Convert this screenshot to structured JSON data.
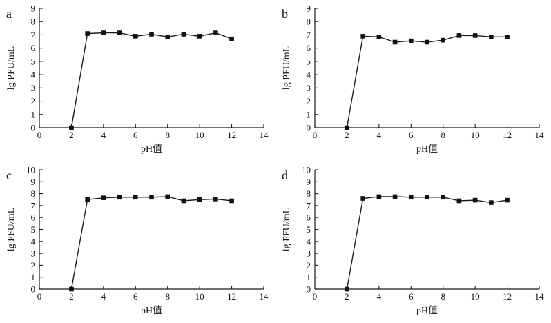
{
  "page": {
    "background": "#ffffff",
    "foreground": "#1a1a1a"
  },
  "chart_data": [
    {
      "type": "line",
      "panel_label": "a",
      "xlabel": "pH值",
      "ylabel": "lg PFU/mL",
      "xlim": [
        0,
        14
      ],
      "ylim": [
        0,
        9
      ],
      "xticks": [
        0,
        2,
        4,
        6,
        8,
        10,
        12,
        14
      ],
      "yticks": [
        0,
        1,
        2,
        3,
        4,
        5,
        6,
        7,
        8,
        9
      ],
      "x": [
        2,
        3,
        4,
        5,
        6,
        7,
        8,
        9,
        10,
        11,
        12
      ],
      "y": [
        0,
        7.1,
        7.15,
        7.15,
        6.9,
        7.05,
        6.85,
        7.05,
        6.9,
        7.15,
        6.7
      ],
      "line_color": "#1a1a1a",
      "marker": "square",
      "grid": false,
      "legend": null
    },
    {
      "type": "line",
      "panel_label": "b",
      "xlabel": "pH值",
      "ylabel": "lg PFU/mL",
      "xlim": [
        0,
        14
      ],
      "ylim": [
        0,
        9
      ],
      "xticks": [
        0,
        2,
        4,
        6,
        8,
        10,
        12,
        14
      ],
      "yticks": [
        0,
        1,
        2,
        3,
        4,
        5,
        6,
        7,
        8,
        9
      ],
      "x": [
        2,
        3,
        4,
        5,
        6,
        7,
        8,
        9,
        10,
        11,
        12
      ],
      "y": [
        0,
        6.9,
        6.85,
        6.45,
        6.55,
        6.45,
        6.6,
        6.95,
        6.95,
        6.85,
        6.85
      ],
      "line_color": "#1a1a1a",
      "marker": "square",
      "grid": false,
      "legend": null
    },
    {
      "type": "line",
      "panel_label": "c",
      "xlabel": "pH值",
      "ylabel": "lg PFU/mL",
      "xlim": [
        0,
        14
      ],
      "ylim": [
        0,
        10
      ],
      "xticks": [
        0,
        2,
        4,
        6,
        8,
        10,
        12,
        14
      ],
      "yticks": [
        0,
        1,
        2,
        3,
        4,
        5,
        6,
        7,
        8,
        9,
        10
      ],
      "x": [
        2,
        3,
        4,
        5,
        6,
        7,
        8,
        9,
        10,
        11,
        12
      ],
      "y": [
        0,
        7.5,
        7.65,
        7.7,
        7.7,
        7.7,
        7.75,
        7.4,
        7.5,
        7.55,
        7.4
      ],
      "line_color": "#1a1a1a",
      "marker": "square",
      "grid": false,
      "legend": null
    },
    {
      "type": "line",
      "panel_label": "d",
      "xlabel": "pH值",
      "ylabel": "lg PFU/mL",
      "xlim": [
        0,
        14
      ],
      "ylim": [
        0,
        10
      ],
      "xticks": [
        0,
        2,
        4,
        6,
        8,
        10,
        12,
        14
      ],
      "yticks": [
        0,
        1,
        2,
        3,
        4,
        5,
        6,
        7,
        8,
        9,
        10
      ],
      "x": [
        2,
        3,
        4,
        5,
        6,
        7,
        8,
        9,
        10,
        11,
        12
      ],
      "y": [
        0,
        7.6,
        7.75,
        7.75,
        7.7,
        7.7,
        7.7,
        7.4,
        7.45,
        7.25,
        7.45
      ],
      "line_color": "#1a1a1a",
      "marker": "square",
      "grid": false,
      "legend": null
    }
  ]
}
